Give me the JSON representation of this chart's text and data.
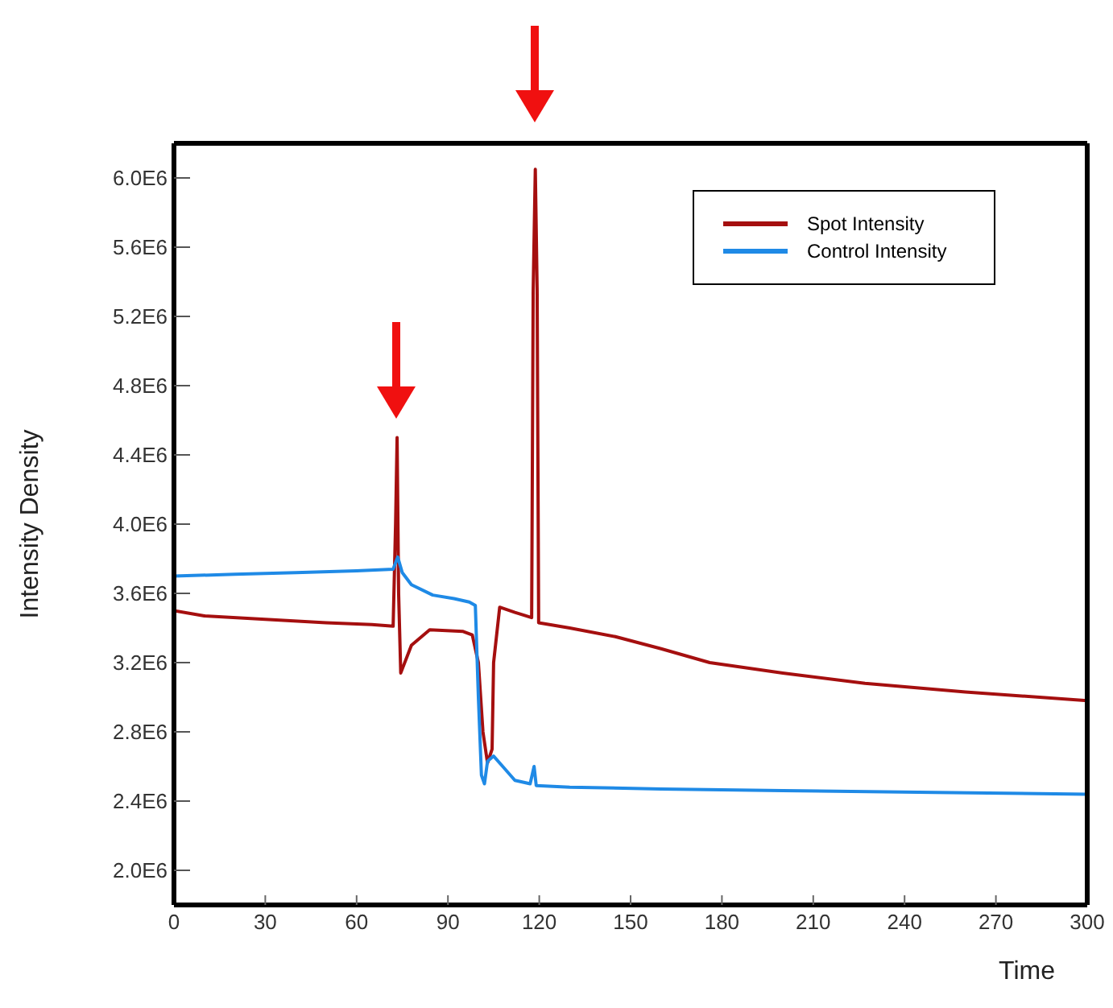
{
  "chart_data": {
    "type": "line",
    "xlabel": "Time",
    "ylabel": "Intensity Density",
    "xlim": [
      0,
      300
    ],
    "xticks": [
      0,
      30,
      60,
      90,
      120,
      150,
      180,
      210,
      240,
      270,
      300
    ],
    "ylim": [
      1800000,
      6200000
    ],
    "yticks": [
      {
        "value": 2000000,
        "label": "2.0E6"
      },
      {
        "value": 2400000,
        "label": "2.4E6"
      },
      {
        "value": 2800000,
        "label": "2.8E6"
      },
      {
        "value": 3200000,
        "label": "3.2E6"
      },
      {
        "value": 3600000,
        "label": "3.6E6"
      },
      {
        "value": 4000000,
        "label": "4.0E6"
      },
      {
        "value": 4400000,
        "label": "4.4E6"
      },
      {
        "value": 4800000,
        "label": "4.8E6"
      },
      {
        "value": 5200000,
        "label": "5.2E6"
      },
      {
        "value": 5600000,
        "label": "5.6E6"
      },
      {
        "value": 6000000,
        "label": "6.0E6"
      }
    ],
    "grid": false,
    "legend": "top right",
    "marker": "none",
    "line_style": "solid",
    "series": [
      {
        "name": "Spot Intensity",
        "color": "#a50f0f",
        "x": [
          0,
          10,
          30,
          50,
          65,
          72,
          72.8,
          73.3,
          73.8,
          74.5,
          78,
          84,
          95,
          98,
          100,
          101.5,
          103,
          104.5,
          105,
          107,
          112,
          117.5,
          118,
          118.7,
          119.3,
          119.8,
          130,
          145,
          160,
          176,
          200,
          227,
          260,
          300
        ],
        "values": [
          3500000,
          3470000,
          3450000,
          3430000,
          3420000,
          3410000,
          4000000,
          4500000,
          3600000,
          3140000,
          3300000,
          3390000,
          3380000,
          3360000,
          3200000,
          2800000,
          2620000,
          2700000,
          3200000,
          3520000,
          3490000,
          3460000,
          5350000,
          6050000,
          5350000,
          3430000,
          3400000,
          3350000,
          3280000,
          3200000,
          3140000,
          3080000,
          3030000,
          2980000
        ]
      },
      {
        "name": "Control Intensity",
        "color": "#1f8ae6",
        "x": [
          0,
          20,
          40,
          60,
          72,
          73.5,
          75,
          78,
          85,
          92,
          97,
          99,
          100,
          101,
          102,
          103,
          105,
          108,
          112,
          117,
          118.3,
          119,
          130,
          160,
          200,
          250,
          300
        ],
        "values": [
          3700000,
          3710000,
          3720000,
          3730000,
          3740000,
          3810000,
          3720000,
          3650000,
          3590000,
          3570000,
          3550000,
          3530000,
          3000000,
          2550000,
          2500000,
          2630000,
          2660000,
          2600000,
          2520000,
          2500000,
          2600000,
          2490000,
          2480000,
          2470000,
          2460000,
          2450000,
          2440000
        ]
      }
    ]
  }
}
